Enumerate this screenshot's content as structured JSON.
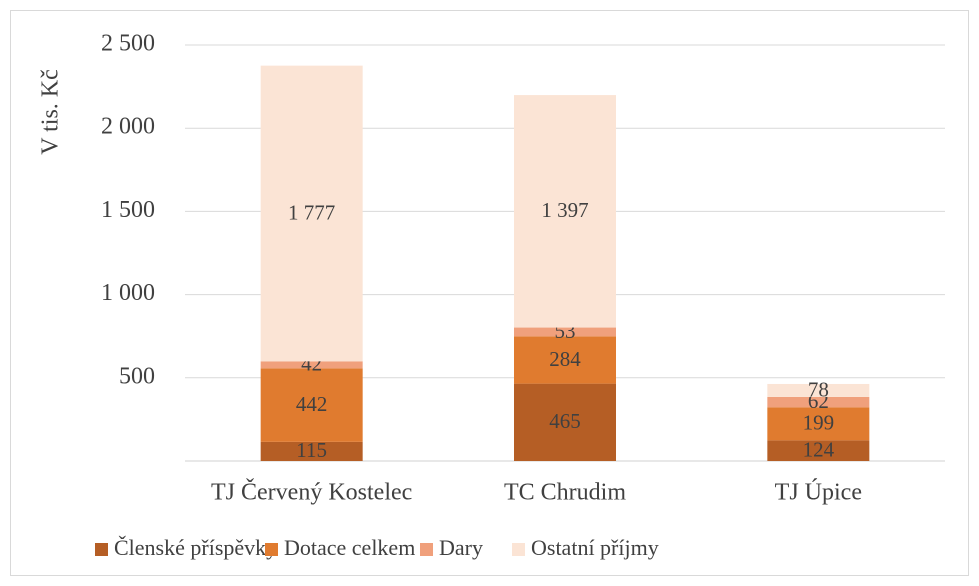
{
  "chart_data": {
    "type": "stacked_bar",
    "ylabel": "V tis. Kč",
    "categories": [
      "TJ Červený Kostelec",
      "TC Chrudim",
      "TJ Úpice"
    ],
    "series": [
      {
        "name": "Členské příspěvky",
        "color": "#b55e25",
        "values": [
          115,
          465,
          124
        ]
      },
      {
        "name": "Dotace celkem",
        "color": "#e07b2f",
        "values": [
          442,
          284,
          199
        ]
      },
      {
        "name": "Dary",
        "color": "#f0a07c",
        "values": [
          42,
          53,
          62
        ]
      },
      {
        "name": "Ostatní příjmy",
        "color": "#fbe4d5",
        "values": [
          1777,
          1397,
          78
        ],
        "value_labels": [
          "1 777",
          "1 397",
          "78"
        ]
      }
    ],
    "ylim": [
      0,
      2500
    ],
    "yticks": [
      500,
      {
        "value": 1000,
        "label": "1 000"
      },
      {
        "value": 1500,
        "label": "1 500"
      },
      {
        "value": 2000,
        "label": "2 000"
      },
      {
        "value": 2500,
        "label": "2 500"
      }
    ],
    "grid": true,
    "legend": "bottom"
  }
}
